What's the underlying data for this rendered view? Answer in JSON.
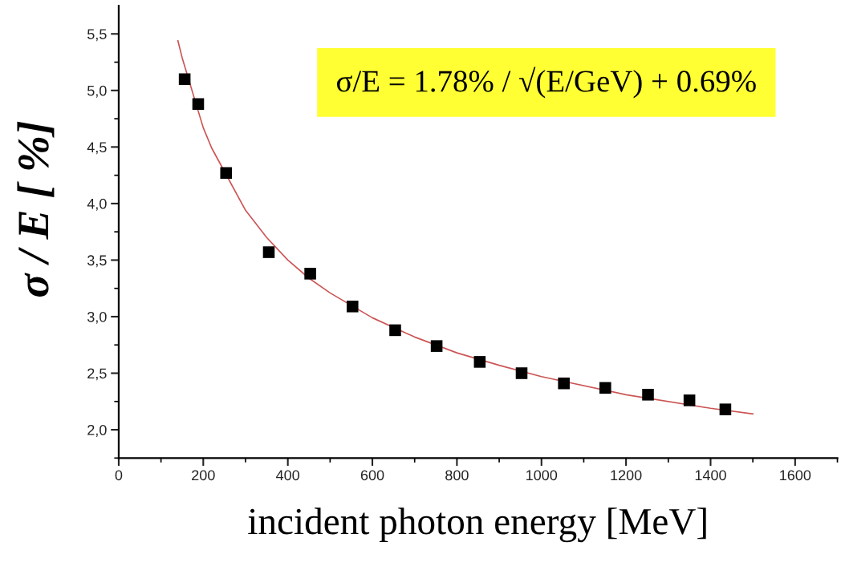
{
  "chart_data": {
    "type": "scatter",
    "xlabel": "incident photon energy [MeV]",
    "ylabel": "σ / E [ %]",
    "annotations": [
      "σ/E = 1.78% / √(E/GeV) + 0.69%"
    ],
    "xlim": [
      0,
      1700
    ],
    "xticks": [
      0,
      200,
      400,
      600,
      800,
      1000,
      1200,
      1400,
      1600
    ],
    "ylim": [
      1.75,
      5.75
    ],
    "yticks": [
      {
        "value": 2.0,
        "label": "2,0"
      },
      {
        "value": 2.5,
        "label": "2,5"
      },
      {
        "value": 3.0,
        "label": "3,0"
      },
      {
        "value": 3.5,
        "label": "3,5"
      },
      {
        "value": 4.0,
        "label": "4,0"
      },
      {
        "value": 4.5,
        "label": "4,5"
      },
      {
        "value": 5.0,
        "label": "5,0"
      },
      {
        "value": 5.5,
        "label": "5,5"
      }
    ],
    "grid": false,
    "legend": false,
    "series": [
      {
        "type": "line",
        "color": "#cc5555",
        "marker": "none",
        "line_style": "solid",
        "x": [
          140,
          150,
          200,
          220,
          300,
          350,
          400,
          450,
          500,
          600,
          700,
          800,
          900,
          1000,
          1200,
          1400,
          1500
        ],
        "values": [
          5.44,
          5.29,
          4.67,
          4.49,
          3.94,
          3.7,
          3.5,
          3.34,
          3.21,
          2.99,
          2.82,
          2.68,
          2.57,
          2.47,
          2.31,
          2.19,
          2.14
        ]
      },
      {
        "color": "#000000",
        "marker": "square",
        "x": [
          156,
          188,
          254,
          355,
          453,
          553,
          654,
          752,
          854,
          953,
          1053,
          1151,
          1252,
          1350,
          1435
        ],
        "values": [
          5.1,
          4.88,
          4.27,
          3.57,
          3.38,
          3.09,
          2.88,
          2.74,
          2.6,
          2.5,
          2.41,
          2.37,
          2.31,
          2.26,
          2.18
        ]
      }
    ]
  }
}
